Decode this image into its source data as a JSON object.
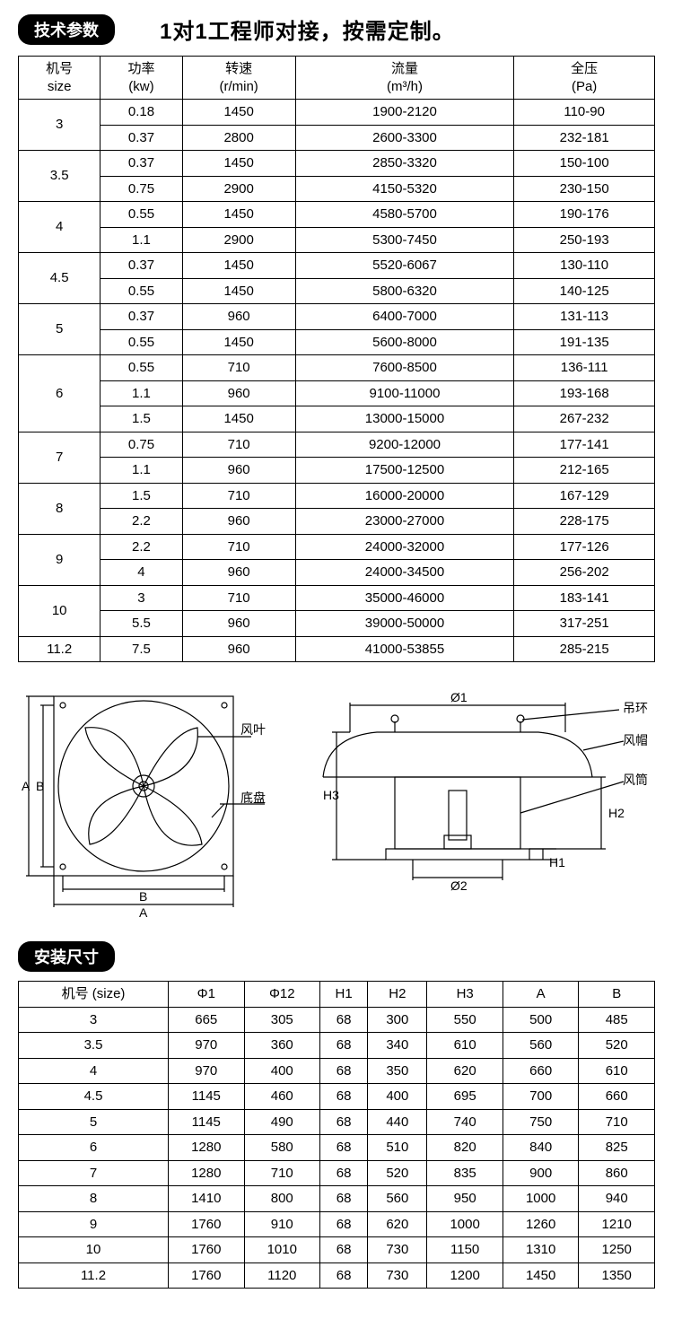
{
  "header": {
    "badge": "技术参数",
    "tagline": "1对1工程师对接，按需定制。"
  },
  "spec_table": {
    "columns": [
      {
        "l1": "机号",
        "l2": "size"
      },
      {
        "l1": "功率",
        "l2": "(kw)"
      },
      {
        "l1": "转速",
        "l2": "(r/min)"
      },
      {
        "l1": "流量",
        "l2": "(m³/h)"
      },
      {
        "l1": "全压",
        "l2": "(Pa)"
      }
    ],
    "groups": [
      {
        "size": "3",
        "rows": [
          [
            "0.18",
            "1450",
            "1900-2120",
            "110-90"
          ],
          [
            "0.37",
            "2800",
            "2600-3300",
            "232-181"
          ]
        ]
      },
      {
        "size": "3.5",
        "rows": [
          [
            "0.37",
            "1450",
            "2850-3320",
            "150-100"
          ],
          [
            "0.75",
            "2900",
            "4150-5320",
            "230-150"
          ]
        ]
      },
      {
        "size": "4",
        "rows": [
          [
            "0.55",
            "1450",
            "4580-5700",
            "190-176"
          ],
          [
            "1.1",
            "2900",
            "5300-7450",
            "250-193"
          ]
        ]
      },
      {
        "size": "4.5",
        "rows": [
          [
            "0.37",
            "1450",
            "5520-6067",
            "130-110"
          ],
          [
            "0.55",
            "1450",
            "5800-6320",
            "140-125"
          ]
        ]
      },
      {
        "size": "5",
        "rows": [
          [
            "0.37",
            "960",
            "6400-7000",
            "131-113"
          ],
          [
            "0.55",
            "1450",
            "5600-8000",
            "191-135"
          ]
        ]
      },
      {
        "size": "6",
        "rows": [
          [
            "0.55",
            "710",
            "7600-8500",
            "136-111"
          ],
          [
            "1.1",
            "960",
            "9100-11000",
            "193-168"
          ],
          [
            "1.5",
            "1450",
            "13000-15000",
            "267-232"
          ]
        ]
      },
      {
        "size": "7",
        "rows": [
          [
            "0.75",
            "710",
            "9200-12000",
            "177-141"
          ],
          [
            "1.1",
            "960",
            "17500-12500",
            "212-165"
          ]
        ]
      },
      {
        "size": "8",
        "rows": [
          [
            "1.5",
            "710",
            "16000-20000",
            "167-129"
          ],
          [
            "2.2",
            "960",
            "23000-27000",
            "228-175"
          ]
        ]
      },
      {
        "size": "9",
        "rows": [
          [
            "2.2",
            "710",
            "24000-32000",
            "177-126"
          ],
          [
            "4",
            "960",
            "24000-34500",
            "256-202"
          ]
        ]
      },
      {
        "size": "10",
        "rows": [
          [
            "3",
            "710",
            "35000-46000",
            "183-141"
          ],
          [
            "5.5",
            "960",
            "39000-50000",
            "317-251"
          ]
        ]
      },
      {
        "size": "11.2",
        "rows": [
          [
            "7.5",
            "960",
            "41000-53855",
            "285-215"
          ]
        ]
      }
    ]
  },
  "diagram_labels": {
    "fanblade": "风叶",
    "base": "底盘",
    "ring": "吊环",
    "hood": "风帽",
    "tube": "风筒",
    "A": "A",
    "B": "B",
    "H1": "H1",
    "H2": "H2",
    "H3": "H3",
    "d1": "Ø1",
    "d2": "Ø2"
  },
  "badge2": "安装尺寸",
  "dim_table": {
    "columns": [
      "机号 (size)",
      "Φ1",
      "Φ12",
      "H1",
      "H2",
      "H3",
      "A",
      "B"
    ],
    "rows": [
      [
        "3",
        "665",
        "305",
        "68",
        "300",
        "550",
        "500",
        "485"
      ],
      [
        "3.5",
        "970",
        "360",
        "68",
        "340",
        "610",
        "560",
        "520"
      ],
      [
        "4",
        "970",
        "400",
        "68",
        "350",
        "620",
        "660",
        "610"
      ],
      [
        "4.5",
        "1145",
        "460",
        "68",
        "400",
        "695",
        "700",
        "660"
      ],
      [
        "5",
        "1145",
        "490",
        "68",
        "440",
        "740",
        "750",
        "710"
      ],
      [
        "6",
        "1280",
        "580",
        "68",
        "510",
        "820",
        "840",
        "825"
      ],
      [
        "7",
        "1280",
        "710",
        "68",
        "520",
        "835",
        "900",
        "860"
      ],
      [
        "8",
        "1410",
        "800",
        "68",
        "560",
        "950",
        "1000",
        "940"
      ],
      [
        "9",
        "1760",
        "910",
        "68",
        "620",
        "1000",
        "1260",
        "1210"
      ],
      [
        "10",
        "1760",
        "1010",
        "68",
        "730",
        "1150",
        "1310",
        "1250"
      ],
      [
        "11.2",
        "1760",
        "1120",
        "68",
        "730",
        "1200",
        "1450",
        "1350"
      ]
    ]
  },
  "style": {
    "border_color": "#000000",
    "bg": "#ffffff",
    "badge_bg": "#000000",
    "badge_fg": "#ffffff",
    "font_size_table": 15,
    "font_size_tagline": 24,
    "stroke": "#000000",
    "stroke_width": 1.2
  }
}
